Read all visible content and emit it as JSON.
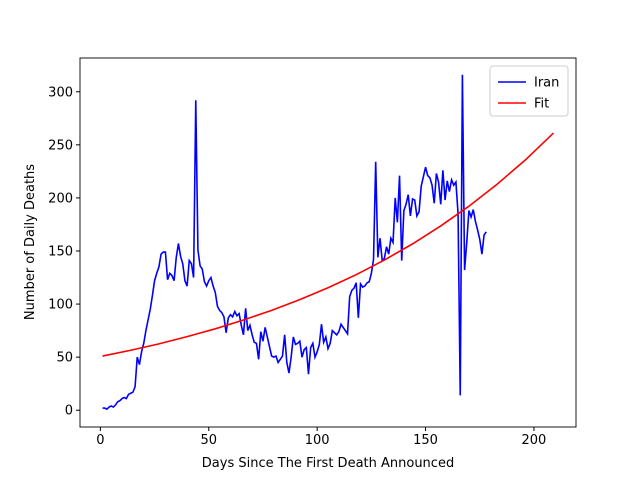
{
  "chart_data": {
    "type": "line",
    "xlabel": "Days Since The First Death Announced",
    "ylabel": "Number of Daily Deaths",
    "xlim": [
      -9.4,
      219.4
    ],
    "ylim": [
      -15.8,
      331.8
    ],
    "xticks": [
      0,
      50,
      100,
      150,
      200
    ],
    "yticks": [
      0,
      50,
      100,
      150,
      200,
      250,
      300
    ],
    "legend": "upper right",
    "series": [
      {
        "name": "Iran",
        "color": "#0000ff",
        "x": [
          1,
          2,
          3,
          4,
          5,
          6,
          7,
          8,
          9,
          10,
          11,
          12,
          13,
          14,
          15,
          16,
          17,
          18,
          19,
          20,
          21,
          22,
          23,
          24,
          25,
          26,
          27,
          28,
          29,
          30,
          31,
          32,
          33,
          34,
          35,
          36,
          37,
          38,
          39,
          40,
          41,
          42,
          43,
          44,
          45,
          46,
          47,
          48,
          49,
          50,
          51,
          52,
          53,
          54,
          55,
          56,
          57,
          58,
          59,
          60,
          61,
          62,
          63,
          64,
          65,
          66,
          67,
          68,
          69,
          70,
          71,
          72,
          73,
          74,
          75,
          76,
          77,
          78,
          79,
          80,
          81,
          82,
          83,
          84,
          85,
          86,
          87,
          88,
          89,
          90,
          91,
          92,
          93,
          94,
          95,
          96,
          97,
          98,
          99,
          100,
          101,
          102,
          103,
          104,
          105,
          106,
          107,
          108,
          109,
          110,
          111,
          112,
          113,
          114,
          115,
          116,
          117,
          118,
          119,
          120,
          121,
          122,
          123,
          124,
          125,
          126,
          127,
          128,
          129,
          130,
          131,
          132,
          133,
          134,
          135,
          136,
          137,
          138,
          139,
          140,
          141,
          142,
          143,
          144,
          145,
          146,
          147,
          148,
          149,
          150,
          151,
          152,
          153,
          154,
          155,
          156,
          157,
          158,
          159,
          160,
          161,
          162,
          163,
          164,
          165,
          166,
          167,
          168,
          169,
          170,
          171,
          172,
          173,
          174,
          175,
          176,
          177,
          178
        ],
        "values": [
          2,
          2,
          1,
          3,
          4,
          3,
          5,
          8,
          9,
          11,
          12,
          11,
          15,
          16,
          17,
          22,
          50,
          43,
          55,
          63,
          75,
          85,
          95,
          108,
          122,
          129,
          135,
          147,
          149,
          149,
          123,
          129,
          127,
          122,
          144,
          157,
          145,
          138,
          122,
          117,
          141,
          138,
          125,
          292,
          151,
          136,
          133,
          121,
          117,
          122,
          125,
          117,
          111,
          98,
          94,
          92,
          88,
          73,
          87,
          90,
          88,
          93,
          89,
          91,
          80,
          71,
          96,
          75,
          80,
          71,
          64,
          63,
          48,
          74,
          65,
          78,
          69,
          60,
          51,
          50,
          51,
          45,
          48,
          51,
          71,
          45,
          35,
          50,
          69,
          62,
          63,
          65,
          50,
          57,
          59,
          34,
          59,
          63,
          50,
          55,
          62,
          81,
          64,
          69,
          58,
          63,
          75,
          73,
          71,
          74,
          81,
          78,
          75,
          72,
          107,
          113,
          115,
          120,
          87,
          119,
          116,
          117,
          120,
          121,
          129,
          142,
          234,
          144,
          162,
          141,
          143,
          154,
          147,
          162,
          158,
          200,
          177,
          221,
          141,
          188,
          194,
          203,
          183,
          199,
          198,
          183,
          187,
          211,
          220,
          229,
          221,
          219,
          212,
          195,
          223,
          215,
          194,
          226,
          198,
          216,
          206,
          217,
          212,
          215,
          185,
          14,
          316,
          132,
          158,
          188,
          182,
          189,
          178,
          170,
          161,
          147,
          165,
          168
        ]
      },
      {
        "name": "Fit",
        "color": "#ff0000",
        "x": [
          1,
          14,
          27,
          40,
          53,
          66,
          79,
          92,
          105,
          118,
          131,
          144,
          157,
          170,
          183,
          196,
          209
        ],
        "values": [
          51,
          56.5,
          62.5,
          69.3,
          76.7,
          85,
          94.1,
          104.2,
          115.4,
          127.7,
          141.5,
          156.7,
          173.6,
          192.2,
          212.9,
          235.7,
          261.1
        ]
      }
    ]
  }
}
